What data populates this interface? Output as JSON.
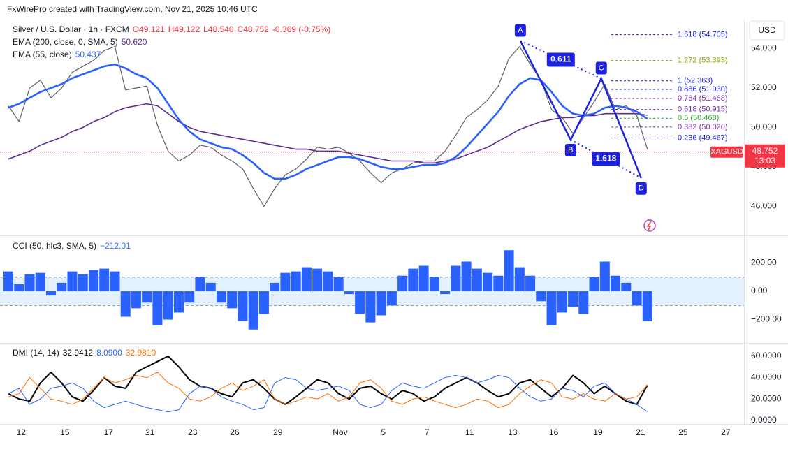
{
  "header": "FxWirePro created with TradingView.com, Nov 21, 2025 10:46 UTC",
  "chart_data": [
    {
      "type": "line",
      "currency": "USD",
      "ohlc": [
        "O49.121",
        "H49.122",
        "L48.540",
        "C48.752",
        "-0.369 (-0.75%)"
      ],
      "ohlc_color": "#f23645",
      "x": [
        0,
        1,
        2,
        3,
        4,
        5,
        6,
        7,
        8,
        9,
        10,
        11,
        12,
        13,
        14,
        15,
        16,
        17,
        18,
        19,
        20,
        21,
        22,
        23,
        24,
        25,
        26,
        27,
        28,
        29,
        30,
        31,
        32,
        33,
        34,
        35,
        36,
        37,
        38,
        39,
        40,
        41,
        42,
        43,
        44,
        45,
        46,
        47,
        48,
        49,
        50,
        51,
        52,
        53,
        54,
        55,
        56,
        57,
        58,
        59,
        60
      ],
      "series": [
        {
          "name": "Silver / U.S. Dollar · 1h · FXCM",
          "color": "#5d606b",
          "width": 1.2,
          "values": [
            51.1,
            50.3,
            52.0,
            52.4,
            51.5,
            52.0,
            52.8,
            53.1,
            53.4,
            53.9,
            54.1,
            51.9,
            52.0,
            52.1,
            50.1,
            48.8,
            48.3,
            48.6,
            49.1,
            49.0,
            48.6,
            48.3,
            47.9,
            46.9,
            46.0,
            46.9,
            47.6,
            47.9,
            48.4,
            49.0,
            48.9,
            49.0,
            48.7,
            48.3,
            47.7,
            47.2,
            47.7,
            47.9,
            48.2,
            48.3,
            48.3,
            48.8,
            49.6,
            50.5,
            50.9,
            51.4,
            52.1,
            53.5,
            54.1,
            53.2,
            52.4,
            50.9,
            50.5,
            49.7,
            50.5,
            51.3,
            52.2,
            50.9,
            51.1,
            50.6,
            48.9
          ]
        },
        {
          "name": "EMA (200, close, 0, SMA, 5)",
          "legend_value": "50.620",
          "color": "#5e2d91",
          "width": 1.6,
          "values": [
            48.4,
            48.6,
            48.8,
            49.1,
            49.3,
            49.5,
            49.8,
            50.0,
            50.3,
            50.5,
            50.8,
            51.0,
            51.1,
            51.2,
            51.1,
            50.7,
            50.3,
            50.0,
            49.8,
            49.7,
            49.6,
            49.5,
            49.4,
            49.3,
            49.2,
            49.1,
            49.0,
            48.9,
            48.9,
            48.8,
            48.8,
            48.8,
            48.7,
            48.6,
            48.5,
            48.4,
            48.3,
            48.3,
            48.3,
            48.2,
            48.2,
            48.3,
            48.4,
            48.6,
            48.8,
            49.0,
            49.3,
            49.6,
            49.9,
            50.1,
            50.3,
            50.4,
            50.5,
            50.5,
            50.6,
            50.6,
            50.7,
            50.7,
            50.7,
            50.7,
            50.62
          ]
        },
        {
          "name": "EMA (55, close)",
          "legend_value": "50.437",
          "color": "#2962ff",
          "width": 2.6,
          "values": [
            51.0,
            51.2,
            51.5,
            51.8,
            52.0,
            52.2,
            52.5,
            52.7,
            52.9,
            53.1,
            53.2,
            53.0,
            52.7,
            52.5,
            52.0,
            51.2,
            50.4,
            49.8,
            49.4,
            49.2,
            49.0,
            48.9,
            48.6,
            48.2,
            47.7,
            47.4,
            47.4,
            47.6,
            47.9,
            48.1,
            48.3,
            48.5,
            48.5,
            48.4,
            48.2,
            48.0,
            47.9,
            47.9,
            48.0,
            48.1,
            48.1,
            48.2,
            48.5,
            49.0,
            49.6,
            50.2,
            50.8,
            51.6,
            52.2,
            52.5,
            52.4,
            51.8,
            51.1,
            50.7,
            50.6,
            50.7,
            51.0,
            51.1,
            51.0,
            50.8,
            50.437
          ]
        }
      ],
      "xlim": [
        0,
        69
      ],
      "ylim": [
        44.6,
        55.4
      ],
      "yticks": [
        {
          "value": 54,
          "label": "54.000"
        },
        {
          "value": 52,
          "label": "52.000"
        },
        {
          "value": 50,
          "label": "50.000"
        },
        {
          "value": 48,
          "label": "48.000"
        },
        {
          "value": 46,
          "label": "46.000"
        }
      ],
      "last_price": 48.752,
      "last_color": "#f23645",
      "symbol": "XAGUSD",
      "countdown": "13:03",
      "pattern": {
        "color": "#1c22e0",
        "points": [
          {
            "label": "A",
            "x": 48.07,
            "y": 54.39
          },
          {
            "label": "B",
            "x": 52.79,
            "y": 49.38
          },
          {
            "label": "C",
            "x": 55.67,
            "y": 52.48
          },
          {
            "label": "D",
            "x": 59.41,
            "y": 47.44
          }
        ],
        "ratio_ac": "0.611",
        "ratio_bd": "1.618"
      },
      "fib_levels": [
        {
          "label": "1.618 (54.705)",
          "value": 54.705,
          "color": "#1c22e0"
        },
        {
          "label": "1.272 (53.393)",
          "value": 53.393,
          "color": "#8fa300"
        },
        {
          "label": "1 (52.363)",
          "value": 52.363,
          "color": "#1c22e0"
        },
        {
          "label": "0.886 (51.930)",
          "value": 51.93,
          "color": "#1c22e0"
        },
        {
          "label": "0.764 (51.468)",
          "value": 51.468,
          "color": "#7b2fa8"
        },
        {
          "label": "0.618 (50.915)",
          "value": 50.915,
          "color": "#7b2fa8"
        },
        {
          "label": "0.5 (50.468)",
          "value": 50.468,
          "color": "#2e9d2e"
        },
        {
          "label": "0.382 (50.020)",
          "value": 50.02,
          "color": "#7b2fa8"
        },
        {
          "label": "0.236 (49.467)",
          "value": 49.467,
          "color": "#1c22e0"
        }
      ]
    },
    {
      "type": "bar",
      "title": "CCI (50, hlc3, SMA, 5)",
      "x": [
        0,
        1,
        2,
        3,
        4,
        5,
        6,
        7,
        8,
        9,
        10,
        11,
        12,
        13,
        14,
        15,
        16,
        17,
        18,
        19,
        20,
        21,
        22,
        23,
        24,
        25,
        26,
        27,
        28,
        29,
        30,
        31,
        32,
        33,
        34,
        35,
        36,
        37,
        38,
        39,
        40,
        41,
        42,
        43,
        44,
        45,
        46,
        47,
        48,
        49,
        50,
        51,
        52,
        53,
        54,
        55,
        56,
        57,
        58,
        59,
        60
      ],
      "series": [
        {
          "legend_value": "−212.01",
          "color": "#2962ff",
          "values": [
            140,
            50,
            120,
            130,
            -30,
            60,
            140,
            120,
            150,
            160,
            140,
            -180,
            -120,
            -80,
            -240,
            -200,
            -150,
            -80,
            100,
            60,
            -80,
            -120,
            -210,
            -270,
            -160,
            60,
            130,
            140,
            170,
            160,
            140,
            100,
            -20,
            -160,
            -220,
            -170,
            -100,
            110,
            160,
            180,
            100,
            -20,
            180,
            210,
            160,
            130,
            110,
            290,
            170,
            110,
            -70,
            -240,
            -150,
            -110,
            -160,
            100,
            210,
            110,
            60,
            -100,
            -212.01
          ]
        }
      ],
      "bands": [
        100,
        -100
      ],
      "band_fill": "#e3f0fd",
      "xlim": [
        0,
        69
      ],
      "ylim": [
        -360,
        380
      ],
      "yticks": [
        {
          "value": 200,
          "label": "200.00"
        },
        {
          "value": 0,
          "label": "0.00"
        },
        {
          "value": -200,
          "label": "−200.00"
        }
      ]
    },
    {
      "type": "line",
      "title": "DMI (14, 14)",
      "x": [
        0,
        1,
        2,
        3,
        4,
        5,
        6,
        7,
        8,
        9,
        10,
        11,
        12,
        13,
        14,
        15,
        16,
        17,
        18,
        19,
        20,
        21,
        22,
        23,
        24,
        25,
        26,
        27,
        28,
        29,
        30,
        31,
        32,
        33,
        34,
        35,
        36,
        37,
        38,
        39,
        40,
        41,
        42,
        43,
        44,
        45,
        46,
        47,
        48,
        49,
        50,
        51,
        52,
        53,
        54,
        55,
        56,
        57,
        58,
        59,
        60
      ],
      "series": [
        {
          "legend_value": "32.9412",
          "color": "#000000",
          "width": 2,
          "values": [
            25,
            20,
            18,
            35,
            45,
            35,
            22,
            18,
            28,
            40,
            32,
            30,
            45,
            50,
            55,
            60,
            50,
            38,
            32,
            30,
            25,
            22,
            35,
            38,
            30,
            20,
            15,
            22,
            30,
            38,
            35,
            25,
            20,
            30,
            32,
            25,
            20,
            28,
            25,
            18,
            22,
            30,
            35,
            40,
            35,
            28,
            22,
            25,
            35,
            38,
            30,
            22,
            30,
            42,
            35,
            25,
            32,
            25,
            18,
            15,
            32.9412
          ]
        },
        {
          "legend_value": "8.0900",
          "color": "#2962ff",
          "width": 1,
          "values": [
            25,
            30,
            15,
            20,
            30,
            32,
            35,
            30,
            18,
            12,
            15,
            18,
            15,
            12,
            10,
            8,
            10,
            25,
            32,
            30,
            22,
            18,
            15,
            10,
            12,
            35,
            40,
            38,
            30,
            28,
            30,
            32,
            28,
            15,
            12,
            15,
            28,
            35,
            32,
            30,
            35,
            40,
            42,
            40,
            35,
            38,
            42,
            40,
            30,
            22,
            18,
            20,
            30,
            28,
            22,
            32,
            35,
            25,
            20,
            15,
            8.09
          ]
        },
        {
          "legend_value": "32.9810",
          "color": "#ff6d00",
          "width": 1,
          "values": [
            22,
            25,
            40,
            30,
            20,
            18,
            15,
            20,
            30,
            40,
            35,
            38,
            42,
            40,
            45,
            35,
            30,
            20,
            18,
            22,
            30,
            35,
            28,
            32,
            38,
            20,
            15,
            18,
            22,
            20,
            25,
            18,
            22,
            35,
            38,
            30,
            18,
            15,
            20,
            22,
            18,
            15,
            12,
            15,
            20,
            18,
            12,
            15,
            25,
            32,
            38,
            35,
            22,
            20,
            25,
            20,
            18,
            25,
            20,
            22,
            32.981
          ]
        }
      ],
      "xlim": [
        0,
        69
      ],
      "ylim": [
        -2,
        71
      ],
      "yticks": [
        {
          "value": 60,
          "label": "60.0000"
        },
        {
          "value": 40,
          "label": "40.0000"
        },
        {
          "value": 20,
          "label": "20.0000"
        },
        {
          "value": 0,
          "label": "0.0000"
        }
      ],
      "xticks": [
        {
          "value": 1.2,
          "label": "12"
        },
        {
          "value": 5.3,
          "label": "15"
        },
        {
          "value": 9.4,
          "label": "17"
        },
        {
          "value": 13.3,
          "label": "21"
        },
        {
          "value": 17.3,
          "label": "23"
        },
        {
          "value": 21.25,
          "label": "26"
        },
        {
          "value": 25.3,
          "label": "29"
        },
        {
          "value": 31.15,
          "label": "Nov"
        },
        {
          "value": 35.2,
          "label": "5"
        },
        {
          "value": 39.3,
          "label": "7"
        },
        {
          "value": 43.3,
          "label": "11"
        },
        {
          "value": 47.35,
          "label": "13"
        },
        {
          "value": 51.2,
          "label": "16"
        },
        {
          "value": 55.35,
          "label": "19"
        },
        {
          "value": 59.35,
          "label": "21"
        },
        {
          "value": 63.35,
          "label": "25"
        },
        {
          "value": 67.35,
          "label": "27"
        }
      ]
    }
  ]
}
